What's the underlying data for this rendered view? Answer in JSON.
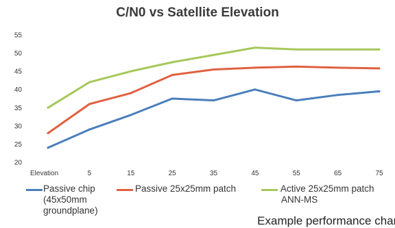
{
  "chart_data": {
    "type": "line",
    "title": "C/N0 vs Satellite Elevation",
    "categories": [
      "Elevation",
      "5",
      "15",
      "25",
      "35",
      "45",
      "55",
      "65",
      "75"
    ],
    "ylim": [
      20,
      55
    ],
    "yticks": [
      "20",
      "25",
      "30",
      "35",
      "40",
      "45",
      "50",
      "55"
    ],
    "grid": false,
    "legend_position": "bottom",
    "series": [
      {
        "name": "Passive chip (45x50mm groundplane)",
        "color": "#4a7ebb",
        "values": [
          24,
          29,
          33,
          37.5,
          37,
          40,
          37,
          38.5,
          39.5
        ]
      },
      {
        "name": "Passive 25x25mm patch",
        "color": "#e06040",
        "values": [
          28,
          36,
          39,
          44,
          45.5,
          46,
          46.3,
          46,
          45.8
        ]
      },
      {
        "name": "Active 25x25mm patch ANN-MS",
        "color": "#a5c85a",
        "values": [
          35,
          42,
          45,
          47.5,
          49.5,
          51.5,
          51,
          51,
          51
        ]
      }
    ]
  },
  "legend": {
    "item1_line1": "Passive chip",
    "item1_line2": "(45x50mm",
    "item1_line3": "groundplane)",
    "item2_line1": "Passive 25x25mm patch",
    "item3_line1": "Active 25x25mm patch",
    "item3_line2": "ANN-MS"
  },
  "caption": "Example performance chart"
}
